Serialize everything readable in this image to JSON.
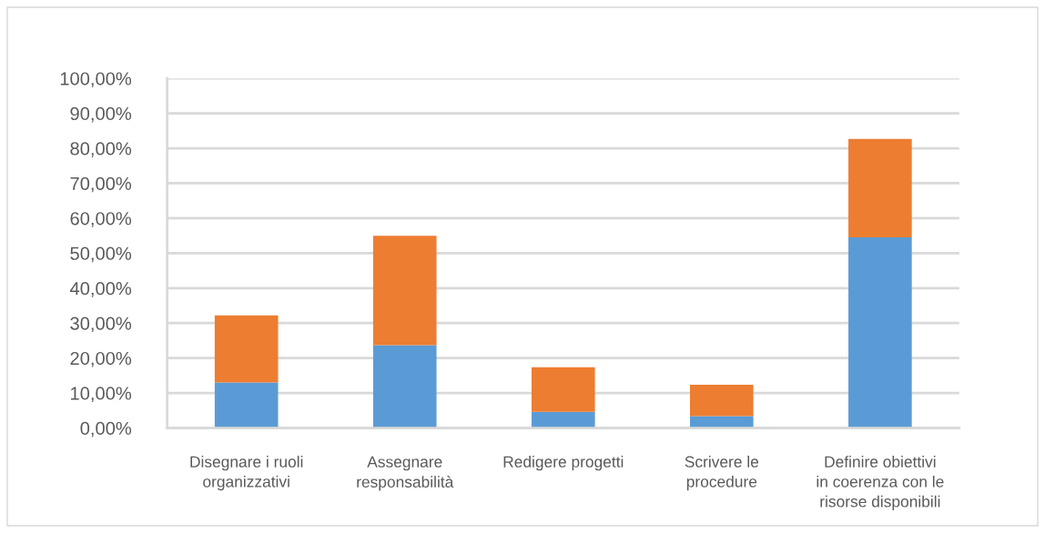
{
  "chart_data": {
    "type": "bar",
    "stacked": true,
    "categories": [
      "Disegnare i ruoli\norganizzativi",
      "Assegnare\nresponsabilità",
      "Redigere progetti",
      "Scrivere le\nprocedure",
      "Definire obiettivi\nin coerenza con le\nrisorse disponibili"
    ],
    "series": [
      {
        "color": "#5b9bd5",
        "values": [
          13.0,
          23.7,
          4.6,
          3.4,
          54.5
        ]
      },
      {
        "color": "#ed7d31",
        "values": [
          19.2,
          31.3,
          12.8,
          9.0,
          28.2
        ]
      }
    ],
    "ylim": [
      0,
      100
    ],
    "yticks": [
      {
        "value": 0,
        "label": "0,00%"
      },
      {
        "value": 10,
        "label": "10,00%"
      },
      {
        "value": 20,
        "label": "20,00%"
      },
      {
        "value": 30,
        "label": "30,00%"
      },
      {
        "value": 40,
        "label": "40,00%"
      },
      {
        "value": 50,
        "label": "50,00%"
      },
      {
        "value": 60,
        "label": "60,00%"
      },
      {
        "value": 70,
        "label": "70,00%"
      },
      {
        "value": 80,
        "label": "80,00%"
      },
      {
        "value": 90,
        "label": "90,00%"
      },
      {
        "value": 100,
        "label": "100,00%"
      }
    ],
    "grid": "y"
  }
}
